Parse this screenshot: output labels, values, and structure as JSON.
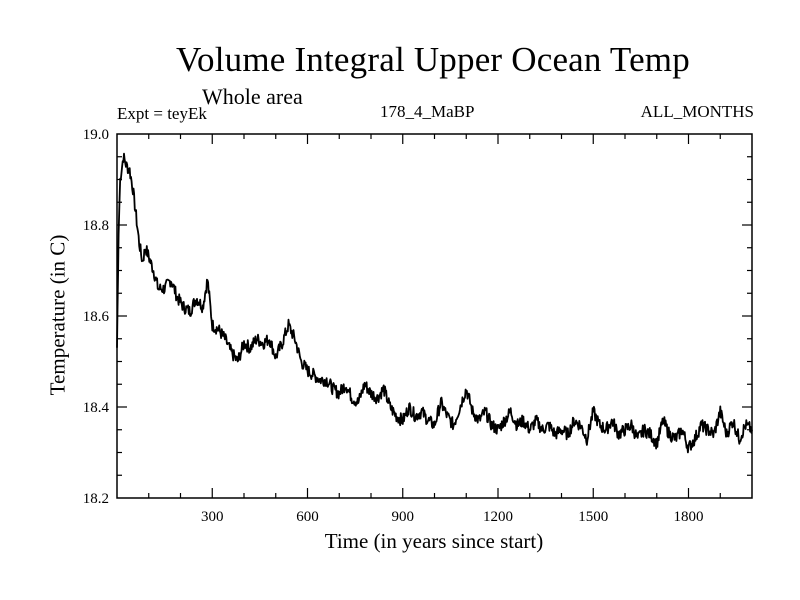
{
  "chart_data": {
    "type": "line",
    "title": "Volume Integral Upper Ocean Temp",
    "subtitle": "Whole area",
    "experiment": "Expt = teyEk",
    "run": "178_4_MaBP",
    "months": "ALL_MONTHS",
    "xlabel": "Time (in years since start)",
    "ylabel": "Temperature (in C)",
    "xlim": [
      0,
      2000
    ],
    "ylim": [
      18.2,
      19.0
    ],
    "x_ticks": [
      300,
      600,
      900,
      1200,
      1500,
      1800
    ],
    "y_ticks": [
      18.2,
      18.4,
      18.6,
      18.8,
      19.0
    ],
    "x_tick_labels": [
      "300",
      "600",
      "900",
      "1200",
      "1500",
      "1800"
    ],
    "y_tick_labels": [
      "18.2",
      "18.4",
      "18.6",
      "18.8",
      "19.0"
    ],
    "series": [
      {
        "name": "Temperature",
        "color": "#000000",
        "x": [
          0,
          5,
          10,
          20,
          30,
          40,
          50,
          60,
          70,
          80,
          90,
          100,
          115,
          130,
          150,
          170,
          190,
          210,
          230,
          250,
          270,
          285,
          300,
          320,
          340,
          360,
          380,
          400,
          420,
          440,
          460,
          480,
          500,
          520,
          540,
          560,
          580,
          600,
          620,
          640,
          660,
          680,
          700,
          720,
          740,
          760,
          780,
          800,
          820,
          840,
          860,
          880,
          900,
          920,
          940,
          960,
          980,
          1000,
          1020,
          1040,
          1060,
          1080,
          1100,
          1120,
          1140,
          1160,
          1180,
          1200,
          1220,
          1240,
          1260,
          1280,
          1300,
          1320,
          1340,
          1360,
          1380,
          1400,
          1420,
          1440,
          1460,
          1480,
          1500,
          1520,
          1540,
          1560,
          1580,
          1600,
          1620,
          1640,
          1660,
          1680,
          1700,
          1720,
          1740,
          1760,
          1780,
          1800,
          1820,
          1840,
          1860,
          1880,
          1900,
          1920,
          1940,
          1960,
          1980,
          2000
        ],
        "y": [
          18.53,
          18.78,
          18.9,
          18.95,
          18.93,
          18.92,
          18.88,
          18.82,
          18.76,
          18.72,
          18.75,
          18.73,
          18.7,
          18.66,
          18.66,
          18.68,
          18.64,
          18.62,
          18.61,
          18.64,
          18.62,
          18.68,
          18.58,
          18.57,
          18.55,
          18.52,
          18.5,
          18.54,
          18.53,
          18.55,
          18.54,
          18.55,
          18.51,
          18.54,
          18.58,
          18.55,
          18.5,
          18.48,
          18.47,
          18.46,
          18.46,
          18.44,
          18.43,
          18.45,
          18.42,
          18.41,
          18.45,
          18.43,
          18.42,
          18.44,
          18.4,
          18.38,
          18.37,
          18.4,
          18.38,
          18.39,
          18.37,
          18.36,
          18.41,
          18.38,
          18.36,
          18.4,
          18.44,
          18.39,
          18.37,
          18.39,
          18.36,
          18.35,
          18.37,
          18.39,
          18.36,
          18.37,
          18.35,
          18.37,
          18.35,
          18.36,
          18.34,
          18.35,
          18.34,
          18.37,
          18.36,
          18.33,
          18.39,
          18.36,
          18.35,
          18.37,
          18.34,
          18.35,
          18.36,
          18.33,
          18.35,
          18.34,
          18.32,
          18.37,
          18.34,
          18.33,
          18.35,
          18.31,
          18.33,
          18.36,
          18.35,
          18.34,
          18.39,
          18.34,
          18.37,
          18.33,
          18.36,
          18.35
        ]
      }
    ]
  }
}
